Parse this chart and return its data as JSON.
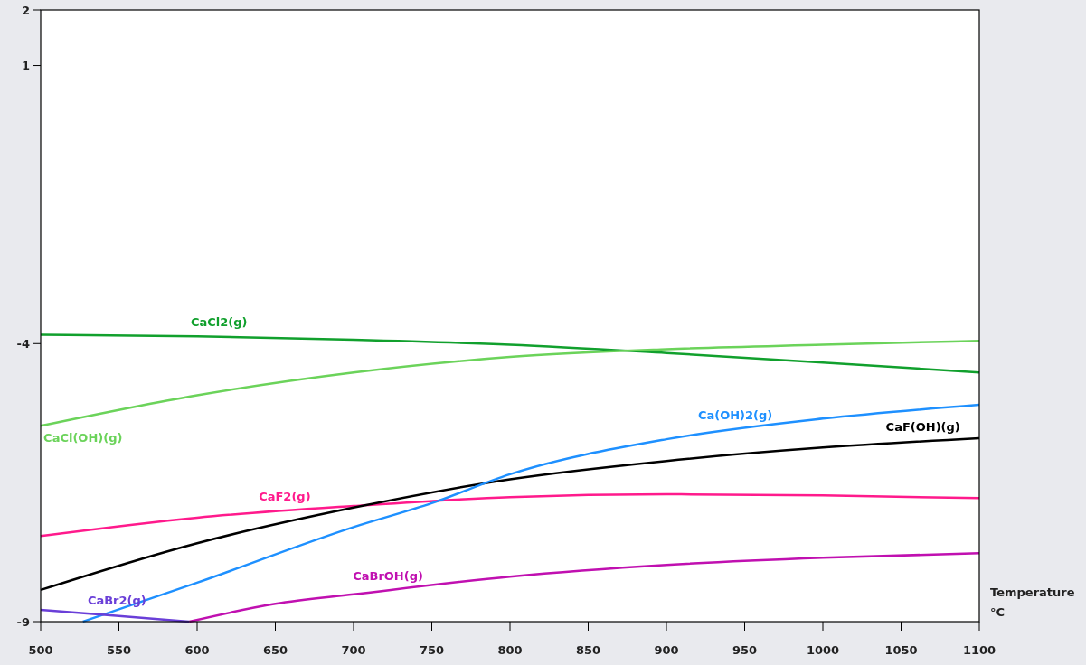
{
  "chart_data": {
    "type": "line",
    "xlabel": "Temperature °C",
    "x": [
      500,
      600,
      700,
      800,
      900,
      1000,
      1100
    ],
    "xlim": [
      500,
      1100
    ],
    "xticks": [
      500,
      550,
      600,
      650,
      700,
      750,
      800,
      850,
      900,
      950,
      1000,
      1050,
      1100
    ],
    "ylim": [
      -9,
      2
    ],
    "yticks": [
      -9,
      -4,
      1,
      2
    ],
    "grid": false,
    "line_style": "solid",
    "marker": "none",
    "series": [
      {
        "name": "CaCl2(g)",
        "color": "#11a02d",
        "values": [
          -3.84,
          -3.87,
          -3.93,
          -4.02,
          -4.17,
          -4.34,
          -4.52
        ]
      },
      {
        "name": "CaCl(OH)(g)",
        "color": "#6bd35a",
        "values": [
          -5.48,
          -4.93,
          -4.52,
          -4.24,
          -4.1,
          -4.02,
          -3.95
        ]
      },
      {
        "name": "CaF2(g)",
        "color": "#ff1a8c",
        "values": [
          -7.46,
          -7.13,
          -6.92,
          -6.76,
          -6.71,
          -6.73,
          -6.78
        ]
      },
      {
        "name": "CaF(OH)(g)",
        "color": "#000000",
        "values": [
          -8.43,
          -7.59,
          -6.95,
          -6.44,
          -6.11,
          -5.87,
          -5.7
        ]
      },
      {
        "name": "Ca(OH)2(g)",
        "color": "#1e90ff",
        "x": [
          527,
          600,
          700,
          750,
          800,
          900,
          1000,
          1100
        ],
        "values": [
          -9,
          -8.3,
          -7.3,
          -6.87,
          -6.35,
          -5.72,
          -5.35,
          -5.1
        ]
      },
      {
        "name": "CaBr2(g)",
        "color": "#6a3fd8",
        "x": [
          500,
          550,
          595
        ],
        "values": [
          -8.79,
          -8.9,
          -9
        ]
      },
      {
        "name": "CaBrOH(g)",
        "color": "#c010b0",
        "x": [
          595,
          650,
          700,
          800,
          900,
          1000,
          1100
        ],
        "values": [
          -9,
          -8.68,
          -8.51,
          -8.19,
          -7.98,
          -7.85,
          -7.77
        ]
      }
    ]
  }
}
